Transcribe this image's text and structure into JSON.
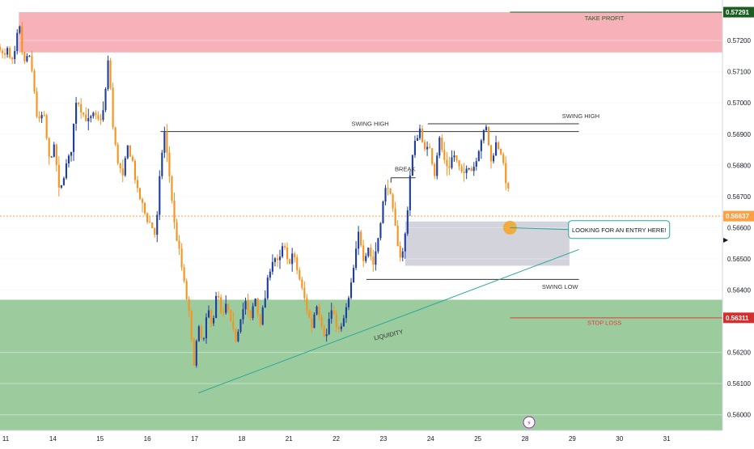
{
  "chart_data": {
    "type": "candlestick",
    "currency": "CHF",
    "ylim": [
      0.5595,
      0.5733
    ],
    "y_ticks": [
      "0.57200",
      "0.57100",
      "0.57000",
      "0.56900",
      "0.56800",
      "0.56700",
      "0.56600",
      "0.56500",
      "0.56400",
      "0.56200",
      "0.56100",
      "0.56000"
    ],
    "x_ticks": [
      {
        "label": "11",
        "x": 0
      },
      {
        "label": "14",
        "x": 5
      },
      {
        "label": "15",
        "x": 10
      },
      {
        "label": "16",
        "x": 15
      },
      {
        "label": "17",
        "x": 20
      },
      {
        "label": "18",
        "x": 25
      },
      {
        "label": "21",
        "x": 30
      },
      {
        "label": "22",
        "x": 35
      },
      {
        "label": "23",
        "x": 40
      },
      {
        "label": "24",
        "x": 45
      },
      {
        "label": "25",
        "x": 50
      },
      {
        "label": "28",
        "x": 55
      },
      {
        "label": "29",
        "x": 60
      },
      {
        "label": "30",
        "x": 65
      },
      {
        "label": "31",
        "x": 70
      }
    ],
    "xlim": [
      0,
      76.5
    ],
    "price_path": [
      [
        0,
        0.5718
      ],
      [
        0.4,
        0.5714
      ],
      [
        0.8,
        0.5717
      ],
      [
        1.2,
        0.5712
      ],
      [
        1.6,
        0.5716
      ],
      [
        2.0,
        0.5726
      ],
      [
        2.5,
        0.5712
      ],
      [
        3.0,
        0.5716
      ],
      [
        3.5,
        0.5708
      ],
      [
        4.0,
        0.5693
      ],
      [
        4.6,
        0.5697
      ],
      [
        5.2,
        0.5682
      ],
      [
        5.8,
        0.5686
      ],
      [
        6.3,
        0.567
      ],
      [
        6.9,
        0.5679
      ],
      [
        7.5,
        0.5684
      ],
      [
        8.1,
        0.5702
      ],
      [
        8.7,
        0.5697
      ],
      [
        9.3,
        0.5694
      ],
      [
        9.9,
        0.5696
      ],
      [
        10.5,
        0.5694
      ],
      [
        11.0,
        0.5698
      ],
      [
        11.5,
        0.5715
      ],
      [
        12.0,
        0.569
      ],
      [
        12.5,
        0.5681
      ],
      [
        13.0,
        0.5676
      ],
      [
        13.5,
        0.5686
      ],
      [
        14.0,
        0.5682
      ],
      [
        14.5,
        0.5672
      ],
      [
        15.0,
        0.5668
      ],
      [
        15.5,
        0.5663
      ],
      [
        16.0,
        0.5661
      ],
      [
        16.5,
        0.5657
      ],
      [
        17.0,
        0.568
      ],
      [
        17.4,
        0.5691
      ],
      [
        18.0,
        0.5675
      ],
      [
        18.5,
        0.566
      ],
      [
        19.0,
        0.5652
      ],
      [
        19.5,
        0.5642
      ],
      [
        20.0,
        0.5633
      ],
      [
        20.5,
        0.5616
      ],
      [
        21.0,
        0.5628
      ],
      [
        21.5,
        0.5622
      ],
      [
        22.0,
        0.5634
      ],
      [
        22.5,
        0.5629
      ],
      [
        23.0,
        0.564
      ],
      [
        23.5,
        0.563
      ],
      [
        24.0,
        0.5636
      ],
      [
        24.5,
        0.5628
      ],
      [
        25.0,
        0.5624
      ],
      [
        25.5,
        0.5632
      ],
      [
        26.0,
        0.5636
      ],
      [
        26.5,
        0.563
      ],
      [
        27.0,
        0.5638
      ],
      [
        27.5,
        0.5629
      ],
      [
        28.0,
        0.5636
      ],
      [
        28.5,
        0.5646
      ],
      [
        29.0,
        0.5651
      ],
      [
        29.5,
        0.5648
      ],
      [
        30.0,
        0.5655
      ],
      [
        30.5,
        0.5648
      ],
      [
        31.0,
        0.5652
      ],
      [
        31.5,
        0.5646
      ],
      [
        32.0,
        0.564
      ],
      [
        32.5,
        0.5634
      ],
      [
        33.0,
        0.5628
      ],
      [
        33.5,
        0.5636
      ],
      [
        34.0,
        0.563
      ],
      [
        34.5,
        0.5624
      ],
      [
        35.0,
        0.5634
      ],
      [
        35.5,
        0.563
      ],
      [
        36.0,
        0.5626
      ],
      [
        36.5,
        0.5632
      ],
      [
        37.0,
        0.5638
      ],
      [
        37.5,
        0.5648
      ],
      [
        38.0,
        0.5659
      ],
      [
        38.5,
        0.565
      ],
      [
        39.0,
        0.5654
      ],
      [
        39.5,
        0.5648
      ],
      [
        40.0,
        0.5656
      ],
      [
        40.5,
        0.5667
      ],
      [
        41.0,
        0.5675
      ],
      [
        41.5,
        0.5667
      ],
      [
        42.0,
        0.5657
      ],
      [
        42.5,
        0.5649
      ],
      [
        43.0,
        0.566
      ],
      [
        43.5,
        0.568
      ],
      [
        44.0,
        0.5688
      ],
      [
        44.5,
        0.5692
      ],
      [
        45.0,
        0.5684
      ],
      [
        45.5,
        0.5686
      ],
      [
        46.0,
        0.5677
      ],
      [
        46.5,
        0.5689
      ],
      [
        47.0,
        0.5682
      ],
      [
        47.5,
        0.5679
      ],
      [
        48.0,
        0.5684
      ],
      [
        48.5,
        0.568
      ],
      [
        49.0,
        0.5676
      ],
      [
        49.5,
        0.5681
      ],
      [
        50.0,
        0.5678
      ],
      [
        50.5,
        0.5683
      ],
      [
        51.0,
        0.5689
      ],
      [
        51.5,
        0.5692
      ],
      [
        52.0,
        0.5681
      ],
      [
        52.5,
        0.5687
      ],
      [
        53.0,
        0.5685
      ],
      [
        53.5,
        0.5676
      ],
      [
        54.0,
        0.5669
      ]
    ],
    "zones": [
      {
        "name": "supply",
        "from": 0.57162,
        "to": 0.57291,
        "x_from": 2.0,
        "x_to": 76.5,
        "color": "#f7b1b8"
      },
      {
        "name": "demand",
        "from": 0.5595,
        "to": 0.56369,
        "x_from": 0,
        "x_to": 76.5,
        "color": "#9ccc9e"
      },
      {
        "name": "entry-box",
        "from": 0.56478,
        "to": 0.5662,
        "x_from": 42.9,
        "x_to": 60.3,
        "color": "#cbcbd6"
      }
    ],
    "levels": [
      {
        "name": "take-profit",
        "price": 0.57291,
        "x_from": 54.0,
        "x_to": 76.5,
        "color": "#1b5e20"
      },
      {
        "name": "stop-loss",
        "price": 0.56311,
        "x_from": 54.0,
        "x_to": 76.5,
        "color": "#e53935"
      },
      {
        "name": "swing-high-1",
        "price": 0.56908,
        "x_from": 17.0,
        "x_to": 61.3,
        "color": "#333333"
      },
      {
        "name": "swing-high-2",
        "price": 0.56933,
        "x_from": 45.3,
        "x_to": 61.3,
        "color": "#333333"
      },
      {
        "name": "swing-low",
        "price": 0.56434,
        "x_from": 38.8,
        "x_to": 61.3,
        "color": "#333333"
      },
      {
        "name": "break",
        "price": 0.5676,
        "x_from": 41.4,
        "x_to": 44.0,
        "color": "#333333"
      }
    ],
    "trendline": {
      "x1": 21.0,
      "y1": 0.5607,
      "x2": 61.3,
      "y2": 0.5653,
      "color": "#26a69a"
    },
    "current_price": {
      "value": "0.56637",
      "price": 0.56637,
      "color": "#ff9f43"
    },
    "entry_marker": {
      "x": 54.0,
      "price": 0.566,
      "color": "#f5a623"
    },
    "annotations": [
      {
        "text": "TAKE PROFIT",
        "x": 64.0,
        "price": 0.57265,
        "color": "#1b5e20"
      },
      {
        "text": "SWING HIGH",
        "x": 61.5,
        "price": 0.56951,
        "color": "#333333"
      },
      {
        "text": "SWING HIGH",
        "x": 39.2,
        "price": 0.56926,
        "color": "#333333"
      },
      {
        "text": "BREAK",
        "x": 42.9,
        "price": 0.56781,
        "color": "#333333"
      },
      {
        "text": "SWING LOW",
        "x": 59.3,
        "price": 0.56404,
        "color": "#333333"
      },
      {
        "text": "LIQUIDITY",
        "x": 41.2,
        "price": 0.5625,
        "color": "#333333",
        "rotate": -13
      },
      {
        "text": "STOP LOSS",
        "x": 64.0,
        "price": 0.56288,
        "color": "#e53935"
      }
    ],
    "entry_callout": {
      "text": "LOOKING FOR AN ENTRY HERE!",
      "x": 60.2,
      "price": 0.56594,
      "border": "#26a69a"
    },
    "price_tags": [
      {
        "value": "0.57291",
        "price": 0.57291,
        "bg": "#1b5e20",
        "fg": "#ffffff"
      },
      {
        "value": "0.56637",
        "price": 0.56637,
        "bg": "#ff9f43",
        "fg": "#ffffff"
      },
      {
        "value": "0.56311",
        "price": 0.56311,
        "bg": "#d32f2f",
        "fg": "#ffffff"
      }
    ],
    "colors": {
      "up": "#1f3f9e",
      "down": "#f7931e",
      "grid": "#f0f3fa",
      "axis_text": "#131722"
    }
  },
  "icons": {
    "flash_icon": "⚡",
    "arrow_icon": "▶"
  }
}
